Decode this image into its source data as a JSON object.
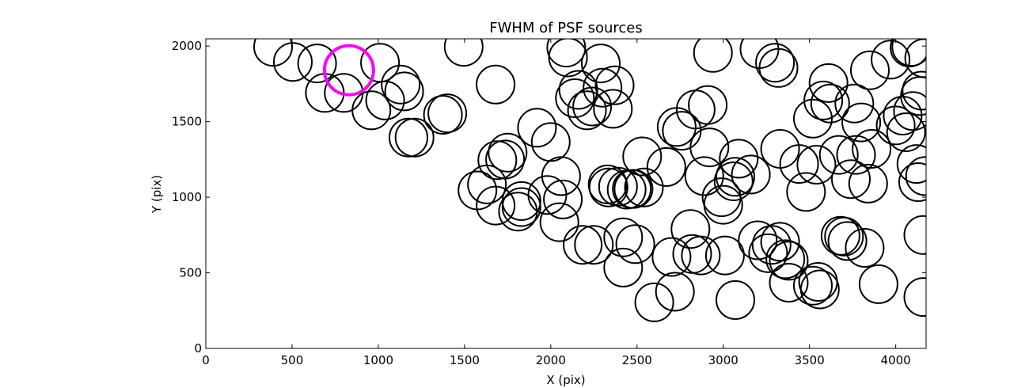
{
  "chart_data": {
    "type": "scatter",
    "title": "FWHM of PSF sources",
    "xlabel": "X (pix)",
    "ylabel": "Y (pix)",
    "xlim": [
      0,
      4176
    ],
    "ylim": [
      0,
      2048
    ],
    "xticks": [
      0,
      500,
      1000,
      1500,
      2000,
      2500,
      3000,
      3500,
      4000
    ],
    "yticks": [
      0,
      500,
      1000,
      1500,
      2000
    ],
    "grid": false,
    "marker": "open-circle",
    "marker_color": "#000000",
    "highlight_color": "#ff00ff",
    "series": [
      {
        "points": [
          [
            390,
            1995
          ],
          [
            505,
            1895
          ],
          [
            645,
            1885
          ],
          [
            690,
            1690
          ],
          [
            800,
            1690
          ],
          [
            960,
            1575
          ],
          [
            1010,
            1890
          ],
          [
            1040,
            1640
          ],
          [
            1130,
            1745
          ],
          [
            1150,
            1700
          ],
          [
            1175,
            1395
          ],
          [
            1210,
            1395
          ],
          [
            1375,
            1545
          ],
          [
            1400,
            1555
          ],
          [
            1495,
            1995
          ],
          [
            1575,
            1045
          ],
          [
            1630,
            1085
          ],
          [
            1680,
            945
          ],
          [
            1680,
            1745
          ],
          [
            1690,
            1245
          ],
          [
            1735,
            1250
          ],
          [
            1750,
            1295
          ],
          [
            1810,
            905
          ],
          [
            1830,
            935
          ],
          [
            1830,
            975
          ],
          [
            1920,
            1460
          ],
          [
            1980,
            1015
          ],
          [
            2000,
            1365
          ],
          [
            2050,
            835
          ],
          [
            2060,
            1140
          ],
          [
            2070,
            985
          ],
          [
            2090,
            1990
          ],
          [
            2100,
            1925
          ],
          [
            2140,
            1655
          ],
          [
            2160,
            1710
          ],
          [
            2185,
            685
          ],
          [
            2210,
            1575
          ],
          [
            2240,
            1600
          ],
          [
            2250,
            685
          ],
          [
            2290,
            1885
          ],
          [
            2300,
            1725
          ],
          [
            2330,
            1085
          ],
          [
            2335,
            1065
          ],
          [
            2360,
            1585
          ],
          [
            2370,
            1740
          ],
          [
            2390,
            1070
          ],
          [
            2420,
            735
          ],
          [
            2420,
            535
          ],
          [
            2440,
            1050
          ],
          [
            2470,
            1055
          ],
          [
            2480,
            1055
          ],
          [
            2490,
            690
          ],
          [
            2530,
            1270
          ],
          [
            2540,
            1065
          ],
          [
            2600,
            305
          ],
          [
            2670,
            1200
          ],
          [
            2700,
            605
          ],
          [
            2720,
            375
          ],
          [
            2730,
            1465
          ],
          [
            2760,
            1440
          ],
          [
            2810,
            790
          ],
          [
            2820,
            625
          ],
          [
            2840,
            1580
          ],
          [
            2870,
            615
          ],
          [
            2890,
            1140
          ],
          [
            2910,
            1610
          ],
          [
            2920,
            1330
          ],
          [
            2940,
            1955
          ],
          [
            2990,
            1000
          ],
          [
            3000,
            950
          ],
          [
            3010,
            615
          ],
          [
            3060,
            1105
          ],
          [
            3070,
            320
          ],
          [
            3070,
            1135
          ],
          [
            3090,
            1255
          ],
          [
            3160,
            1150
          ],
          [
            3200,
            715
          ],
          [
            3210,
            1980
          ],
          [
            3260,
            630
          ],
          [
            3280,
            685
          ],
          [
            3300,
            1890
          ],
          [
            3320,
            1855
          ],
          [
            3330,
            705
          ],
          [
            3330,
            1320
          ],
          [
            3360,
            590
          ],
          [
            3380,
            580
          ],
          [
            3380,
            435
          ],
          [
            3440,
            1220
          ],
          [
            3480,
            1035
          ],
          [
            3520,
            1520
          ],
          [
            3520,
            415
          ],
          [
            3540,
            1215
          ],
          [
            3550,
            440
          ],
          [
            3560,
            390
          ],
          [
            3580,
            1640
          ],
          [
            3610,
            1755
          ],
          [
            3620,
            1620
          ],
          [
            3670,
            1280
          ],
          [
            3680,
            745
          ],
          [
            3700,
            740
          ],
          [
            3720,
            710
          ],
          [
            3740,
            1120
          ],
          [
            3760,
            1620
          ],
          [
            3770,
            1280
          ],
          [
            3800,
            1495
          ],
          [
            3820,
            665
          ],
          [
            3840,
            1090
          ],
          [
            3850,
            1840
          ],
          [
            3860,
            1320
          ],
          [
            3900,
            425
          ],
          [
            3970,
            1910
          ],
          [
            4000,
            1475
          ],
          [
            4040,
            1540
          ],
          [
            4060,
            1430
          ],
          [
            4080,
            1990
          ],
          [
            4090,
            1995
          ],
          [
            4100,
            1570
          ],
          [
            4120,
            1220
          ],
          [
            4130,
            1100
          ],
          [
            4140,
            1670
          ],
          [
            4150,
            1705
          ],
          [
            4160,
            750
          ],
          [
            4160,
            340
          ],
          [
            4165,
            1920
          ],
          [
            4170,
            1140
          ]
        ]
      },
      {
        "name": "highlight",
        "points": [
          [
            830,
            1840
          ]
        ]
      }
    ]
  }
}
